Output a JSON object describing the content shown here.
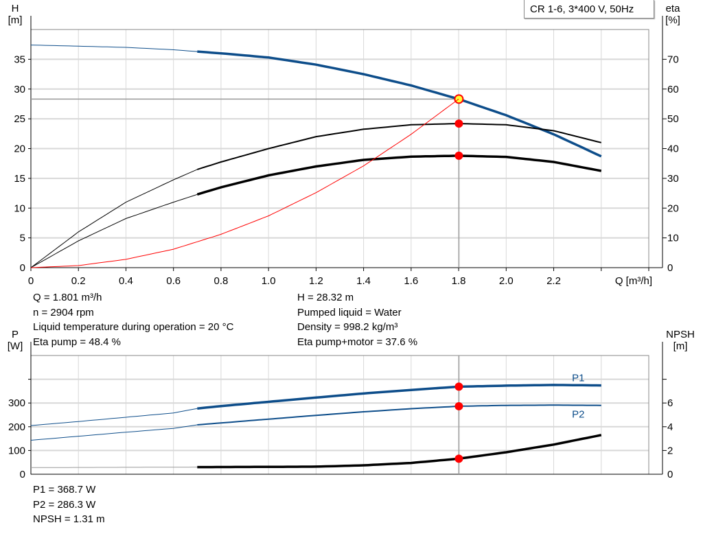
{
  "title": "CR 1-6, 3*400 V, 50Hz",
  "colors": {
    "pump_curve": "#0d4d8a",
    "efficiency": "#000000",
    "system_curve": "#ff0000",
    "marker": "#ff0000",
    "duty_marker_fill": "#ffff33",
    "grid": "#d8d8d8"
  },
  "info_top_left": [
    "Q = 1.801 m³/h",
    "n = 2904 rpm",
    "Liquid temperature during operation = 20 °C",
    "Eta pump = 48.4 %"
  ],
  "info_top_right": [
    "H = 28.32 m",
    "Pumped liquid = Water",
    "Density = 998.2 kg/m³",
    "Eta pump+motor = 37.6 %"
  ],
  "info_bottom": [
    "P1 = 368.7 W",
    "P2 = 286.3 W",
    "NPSH = 1.31 m"
  ],
  "chart_data": [
    {
      "type": "line",
      "xlabel": "Q [m³/h]",
      "ylabel_left": [
        "H",
        "[m]"
      ],
      "ylabel_right": [
        "eta",
        "[%]"
      ],
      "xlim": [
        0,
        2.6
      ],
      "ylim_left": [
        0,
        40
      ],
      "ylim_right": [
        0,
        80
      ],
      "x_ticks": [
        "0",
        "0.2",
        "0.4",
        "0.6",
        "0.8",
        "1.0",
        "1.2",
        "1.4",
        "1.6",
        "1.8",
        "2.0",
        "2.2"
      ],
      "y_ticks_left": [
        "0",
        "5",
        "10",
        "15",
        "20",
        "25",
        "30",
        "35"
      ],
      "y_ticks_right": [
        "0",
        "10",
        "20",
        "30",
        "40",
        "50",
        "60",
        "70"
      ],
      "grid": true,
      "duty_point": {
        "Q": 1.801,
        "H": 28.32,
        "eta_pump": 48.4,
        "eta_pump_motor": 37.6
      },
      "series": [
        {
          "key": "H",
          "axis": "left",
          "x": [
            0,
            0.2,
            0.4,
            0.6,
            0.7,
            0.8,
            1.0,
            1.2,
            1.4,
            1.6,
            1.8,
            2.0,
            2.2,
            2.4
          ],
          "y": [
            37.4,
            37.2,
            37.0,
            36.6,
            36.3,
            36.0,
            35.3,
            34.1,
            32.5,
            30.6,
            28.32,
            25.6,
            22.4,
            18.7
          ]
        },
        {
          "key": "eta_pump",
          "axis": "right",
          "x": [
            0,
            0.2,
            0.4,
            0.6,
            0.7,
            0.8,
            1.0,
            1.2,
            1.4,
            1.6,
            1.8,
            2.0,
            2.2,
            2.4
          ],
          "y": [
            0,
            12,
            22,
            29.5,
            33,
            35.5,
            40,
            44,
            46.5,
            48,
            48.4,
            48,
            46,
            42
          ]
        },
        {
          "key": "eta_pump_motor",
          "axis": "right",
          "x": [
            0,
            0.2,
            0.4,
            0.6,
            0.7,
            0.8,
            1.0,
            1.2,
            1.4,
            1.6,
            1.8,
            2.0,
            2.2,
            2.4
          ],
          "y": [
            0,
            9,
            16.5,
            22,
            24.6,
            27,
            31,
            34,
            36.2,
            37.3,
            37.6,
            37.2,
            35.5,
            32.5
          ]
        },
        {
          "key": "system",
          "axis": "left",
          "x": [
            0,
            0.2,
            0.4,
            0.6,
            0.8,
            1.0,
            1.2,
            1.4,
            1.6,
            1.8
          ],
          "y": [
            0,
            0.35,
            1.4,
            3.1,
            5.6,
            8.7,
            12.6,
            17.1,
            22.4,
            28.32
          ]
        }
      ]
    },
    {
      "type": "line",
      "ylabel_left": [
        "P",
        "[W]"
      ],
      "ylabel_right": [
        "NPSH",
        "[m]"
      ],
      "xlim": [
        0,
        2.6
      ],
      "ylim_left": [
        0,
        500
      ],
      "ylim_right": [
        0,
        10
      ],
      "y_ticks_left": [
        "0",
        "100",
        "200",
        "300"
      ],
      "y_ticks_right": [
        "0",
        "2",
        "4",
        "6"
      ],
      "grid": true,
      "duty_point": {
        "Q": 1.801,
        "P1": 368.7,
        "P2": 286.3,
        "NPSH": 1.31
      },
      "series": [
        {
          "key": "P1",
          "name": "P1",
          "axis": "left",
          "x": [
            0,
            0.2,
            0.4,
            0.6,
            0.7,
            0.8,
            1.0,
            1.2,
            1.4,
            1.6,
            1.8,
            2.0,
            2.2,
            2.4
          ],
          "y": [
            205,
            222,
            240,
            258,
            277,
            287,
            305,
            323,
            340,
            355,
            368.7,
            373,
            376,
            374
          ]
        },
        {
          "key": "P2",
          "name": "P2",
          "axis": "left",
          "x": [
            0,
            0.2,
            0.4,
            0.6,
            0.7,
            0.8,
            1.0,
            1.2,
            1.4,
            1.6,
            1.8,
            2.0,
            2.2,
            2.4
          ],
          "y": [
            143,
            160,
            177,
            193,
            208,
            216,
            232,
            248,
            263,
            276,
            286.3,
            290,
            291,
            290
          ]
        },
        {
          "key": "NPSH",
          "axis": "right",
          "x": [
            0,
            0.7,
            1.0,
            1.2,
            1.4,
            1.6,
            1.8,
            2.0,
            2.2,
            2.4
          ],
          "y": [
            0.56,
            0.6,
            0.62,
            0.64,
            0.75,
            0.95,
            1.31,
            1.85,
            2.5,
            3.3
          ]
        }
      ]
    }
  ]
}
